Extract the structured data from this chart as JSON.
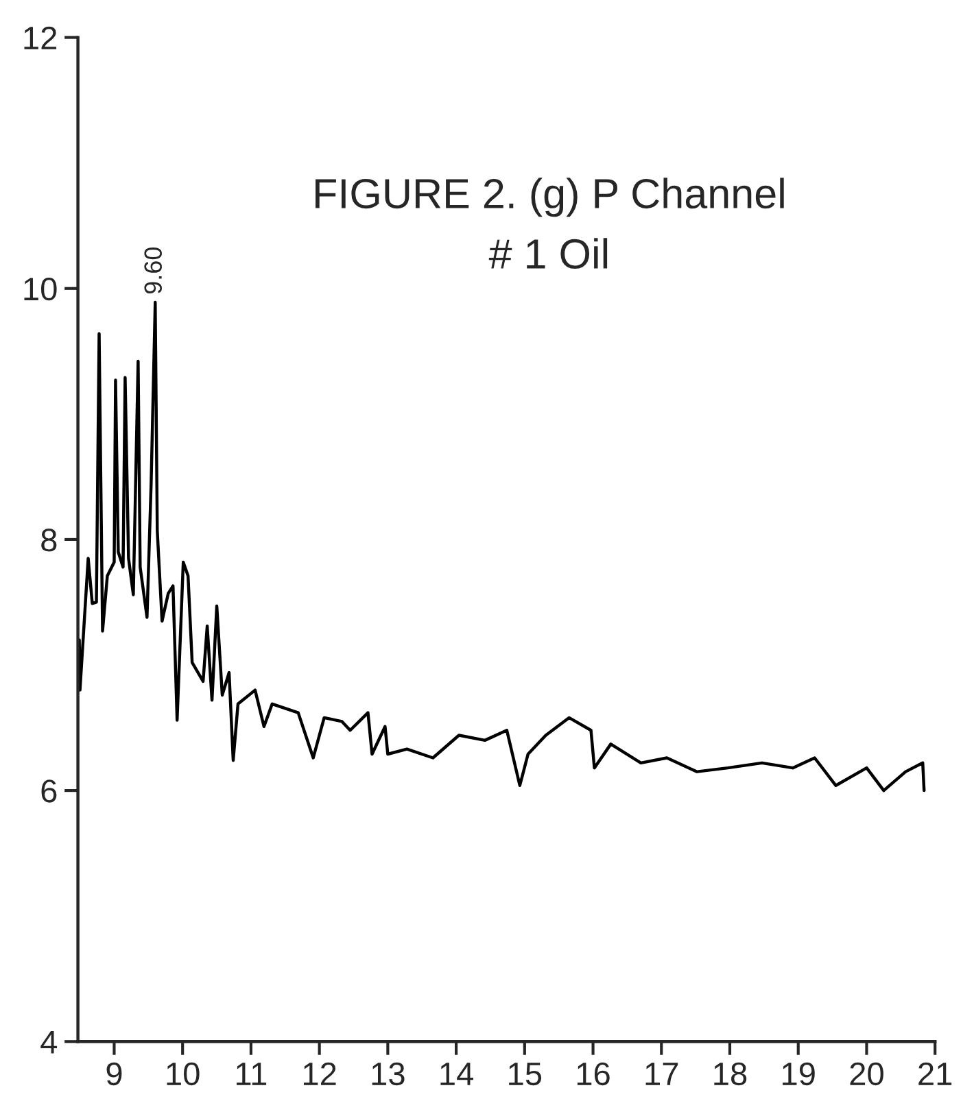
{
  "chart_data": {
    "type": "line",
    "title": "FIGURE 2. (g) P Channel",
    "subtitle": "# 1 Oil",
    "series": [
      {
        "color": "#000000",
        "x": [
          8.48,
          8.49,
          8.5,
          8.62,
          8.68,
          8.74,
          8.78,
          8.83,
          8.9,
          9.0,
          9.02,
          9.06,
          9.13,
          9.16,
          9.21,
          9.28,
          9.35,
          9.38,
          9.48,
          9.54,
          9.6,
          9.63,
          9.7,
          9.79,
          9.86,
          9.92,
          10.01,
          10.08,
          10.14,
          10.3,
          10.36,
          10.43,
          10.5,
          10.58,
          10.68,
          10.74,
          10.81,
          11.06,
          11.19,
          11.31,
          11.69,
          11.91,
          12.07,
          12.33,
          12.45,
          12.71,
          12.77,
          12.96,
          13.0,
          13.28,
          13.66,
          14.04,
          14.42,
          14.74,
          14.93,
          15.05,
          15.31,
          15.65,
          15.97,
          16.02,
          16.26,
          16.7,
          17.08,
          17.52,
          17.97,
          18.47,
          18.92,
          19.24,
          19.55,
          20.0,
          20.25,
          20.57,
          20.82,
          20.84
        ],
        "values": [
          6.98,
          7.2,
          6.8,
          7.85,
          7.49,
          7.5,
          9.64,
          7.27,
          7.71,
          7.82,
          9.27,
          7.9,
          7.78,
          9.29,
          7.85,
          7.56,
          9.42,
          7.78,
          7.38,
          8.44,
          9.89,
          8.07,
          7.35,
          7.57,
          7.63,
          6.56,
          7.82,
          7.71,
          7.02,
          6.87,
          7.31,
          6.72,
          7.47,
          6.76,
          6.94,
          6.24,
          6.69,
          6.8,
          6.51,
          6.69,
          6.62,
          6.26,
          6.58,
          6.55,
          6.48,
          6.62,
          6.29,
          6.51,
          6.29,
          6.33,
          6.26,
          6.44,
          6.4,
          6.48,
          6.04,
          6.29,
          6.44,
          6.58,
          6.48,
          6.18,
          6.37,
          6.22,
          6.26,
          6.15,
          6.18,
          6.22,
          6.18,
          6.26,
          6.04,
          6.18,
          6.0,
          6.15,
          6.22,
          6.0
        ]
      }
    ],
    "annotations": [
      {
        "text": "9.60",
        "x": 9.6,
        "y": 9.89
      }
    ],
    "xlim": [
      8.47,
      21.0
    ],
    "xticks": [
      9,
      10,
      11,
      12,
      13,
      14,
      15,
      16,
      17,
      18,
      19,
      20,
      21
    ],
    "ylim": [
      4,
      12
    ],
    "yticks": [
      4,
      6,
      8,
      10,
      12
    ],
    "grid": false,
    "legend": false
  }
}
